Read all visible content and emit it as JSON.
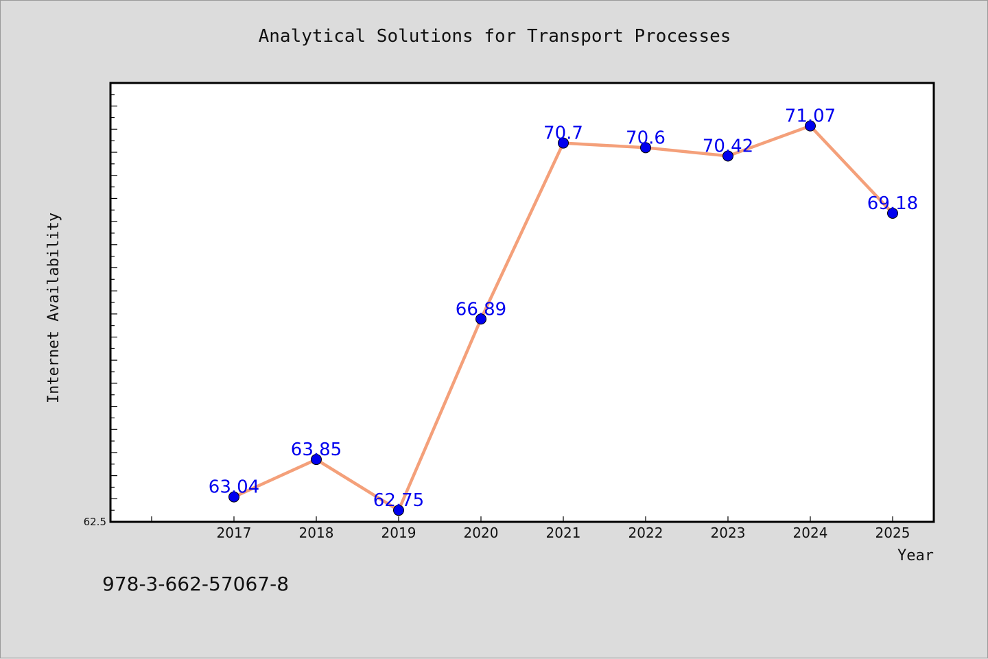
{
  "chart_data": {
    "type": "line",
    "title": "Analytical Solutions for Transport Processes",
    "xlabel": "Year",
    "ylabel": "Internet Availability",
    "categories": [
      "2017",
      "2018",
      "2019",
      "2020",
      "2021",
      "2022",
      "2023",
      "2024",
      "2025"
    ],
    "series": [
      {
        "values": [
          63.04,
          63.85,
          62.75,
          66.89,
          70.7,
          70.6,
          70.42,
          71.07,
          69.18
        ]
      }
    ],
    "data_labels": [
      "63.04",
      "63.85",
      "62.75",
      "66.89",
      "70.7",
      "70.6",
      "70.42",
      "71.07",
      "69.18"
    ],
    "ylim": [
      62.5,
      72.0
    ],
    "yticks_labeled": [
      "62.5"
    ],
    "grid": false,
    "line_color": "#f4a07a",
    "marker_color": "#0000ee",
    "label_color": "#0000ee"
  },
  "footer": {
    "code": "978-3-662-57067-8"
  }
}
